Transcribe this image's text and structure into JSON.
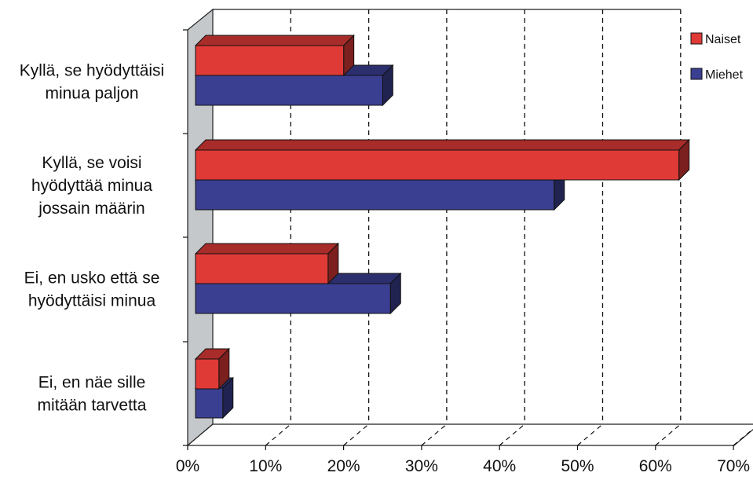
{
  "chart_data": {
    "type": "bar",
    "orientation": "horizontal",
    "three_d": true,
    "categories": [
      [
        "Kyllä, se hyödyttäisi",
        "minua paljon"
      ],
      [
        "Kyllä, se voisi",
        "hyödyttää minua",
        "jossain määrin"
      ],
      [
        "Ei, en usko että se",
        "hyödyttäisi minua"
      ],
      [
        "Ei, en näe sille",
        "mitään tarvetta"
      ]
    ],
    "series": [
      {
        "name": "Naiset",
        "color": "#e03a36",
        "values": [
          19,
          62,
          17,
          3
        ]
      },
      {
        "name": "Miehet",
        "color": "#3a3f91",
        "values": [
          24,
          46,
          25,
          3.5
        ]
      }
    ],
    "xlim": [
      0,
      70
    ],
    "xticks": [
      "0%",
      "10%",
      "20%",
      "30%",
      "40%",
      "50%",
      "60%",
      "70%"
    ],
    "grid": "dashed-vertical",
    "legend_position": "top-right"
  }
}
